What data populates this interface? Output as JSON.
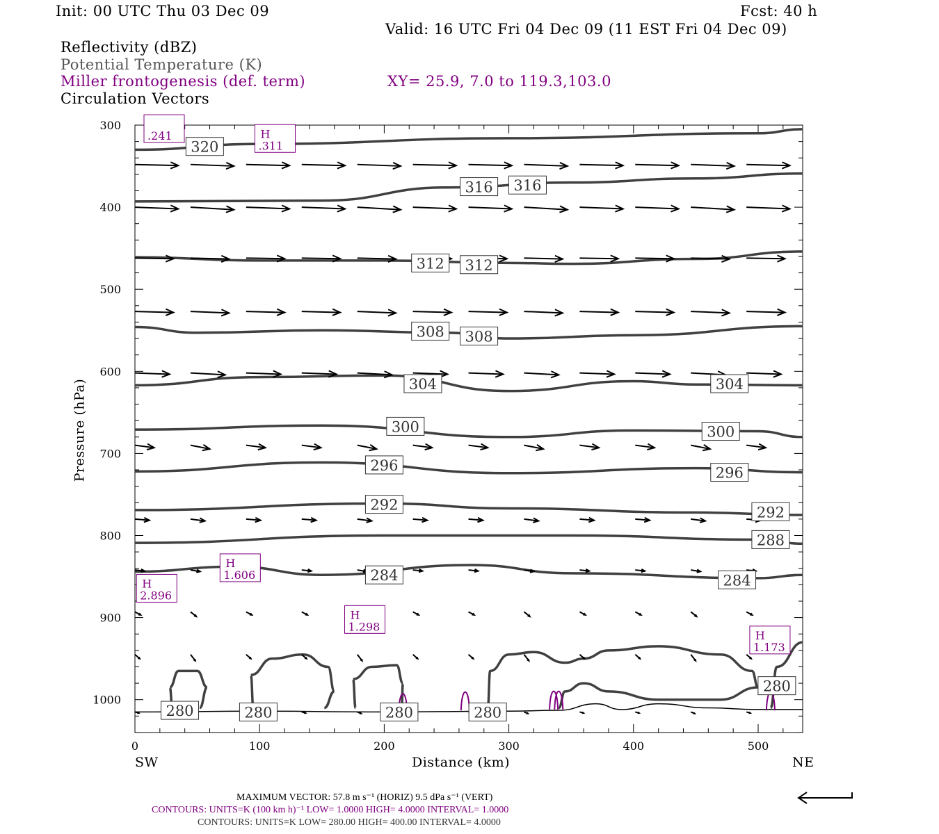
{
  "header": {
    "init": "Init: 00 UTC Thu 03 Dec 09",
    "fcst": "Fcst:   40 h",
    "valid": "Valid: 16 UTC Fri 04 Dec 09 (11 EST Fri 04 Dec 09)"
  },
  "legend": {
    "field1": "Reflectivity (dBZ)",
    "field2": "Potential Temperature (K)",
    "field3": "Miller frontogenesis (def. term)",
    "xy": "XY=  25.9,  7.0 to 119.3,103.0",
    "field4": "Circulation Vectors"
  },
  "footer": {
    "max_vector": "MAXIMUM VECTOR:  57.8 m s⁻¹ (HORIZ)          9.5 dPa s⁻¹ (VERT)",
    "contours_fg": "CONTOURS:  UNITS=K (100 km h)⁻¹  LOW=  1.0000      HIGH=  4.0000      INTERVAL=   1.0000",
    "contours_theta": "CONTOURS:  UNITS=K  LOW=  280.00      HIGH=  400.00      INTERVAL=   4.0000"
  },
  "colors": {
    "theta": "#404040",
    "frontogenesis": "#800080",
    "vectors": "#000000"
  },
  "chart_data": {
    "type": "line",
    "xlabel": "Distance (km)",
    "ylabel": "Pressure (hPa)",
    "xlim": [
      0,
      536
    ],
    "ylim": [
      1040,
      300
    ],
    "xticks": [
      0,
      100,
      200,
      300,
      400,
      500
    ],
    "yticks": [
      300,
      400,
      500,
      600,
      700,
      800,
      900,
      1000
    ],
    "x_end_labels": {
      "left": "SW",
      "right": "NE"
    },
    "theta_contours": [
      {
        "value": 320,
        "points": [
          [
            0,
            330
          ],
          [
            100,
            323
          ],
          [
            300,
            316
          ],
          [
            500,
            310
          ],
          [
            536,
            305
          ]
        ]
      },
      {
        "value": 316,
        "points": [
          [
            0,
            393
          ],
          [
            150,
            392
          ],
          [
            250,
            376
          ],
          [
            350,
            370
          ],
          [
            450,
            365
          ],
          [
            536,
            359
          ]
        ]
      },
      {
        "value": 312,
        "points": [
          [
            0,
            461
          ],
          [
            100,
            465
          ],
          [
            200,
            465
          ],
          [
            300,
            468
          ],
          [
            350,
            469
          ],
          [
            450,
            463
          ],
          [
            536,
            454
          ]
        ]
      },
      {
        "value": 308,
        "points": [
          [
            0,
            546
          ],
          [
            50,
            553
          ],
          [
            150,
            550
          ],
          [
            250,
            553
          ],
          [
            300,
            560
          ],
          [
            400,
            556
          ],
          [
            536,
            545
          ]
        ]
      },
      {
        "value": 304,
        "points": [
          [
            0,
            617
          ],
          [
            100,
            607
          ],
          [
            200,
            605
          ],
          [
            300,
            624
          ],
          [
            400,
            612
          ],
          [
            450,
            616
          ],
          [
            536,
            617
          ]
        ]
      },
      {
        "value": 300,
        "points": [
          [
            0,
            671
          ],
          [
            150,
            666
          ],
          [
            300,
            680
          ],
          [
            400,
            672
          ],
          [
            500,
            673
          ],
          [
            536,
            680
          ]
        ]
      },
      {
        "value": 296,
        "points": [
          [
            0,
            722
          ],
          [
            150,
            711
          ],
          [
            300,
            724
          ],
          [
            450,
            718
          ],
          [
            536,
            723
          ]
        ]
      },
      {
        "value": 292,
        "points": [
          [
            0,
            769
          ],
          [
            200,
            761
          ],
          [
            300,
            767
          ],
          [
            450,
            772
          ],
          [
            536,
            775
          ]
        ]
      },
      {
        "value": 288,
        "points": [
          [
            0,
            809
          ],
          [
            200,
            800
          ],
          [
            350,
            800
          ],
          [
            500,
            805
          ],
          [
            536,
            810
          ]
        ]
      },
      {
        "value": 284,
        "points": [
          [
            0,
            844
          ],
          [
            80,
            838
          ],
          [
            150,
            848
          ],
          [
            270,
            836
          ],
          [
            350,
            846
          ],
          [
            500,
            852
          ],
          [
            536,
            848
          ]
        ]
      },
      {
        "value": 280,
        "points": [
          [
            30,
            1010
          ],
          [
            28,
            985
          ],
          [
            35,
            965
          ],
          [
            50,
            965
          ],
          [
            58,
            985
          ],
          [
            52,
            1010
          ]
        ]
      },
      {
        "value": 280,
        "points": [
          [
            95,
            1010
          ],
          [
            93,
            970
          ],
          [
            110,
            950
          ],
          [
            135,
            945
          ],
          [
            155,
            960
          ],
          [
            160,
            990
          ],
          [
            152,
            1010
          ]
        ]
      },
      {
        "value": 280,
        "points": [
          [
            177,
            1010
          ],
          [
            175,
            975
          ],
          [
            190,
            960
          ],
          [
            210,
            958
          ],
          [
            215,
            980
          ],
          [
            214,
            1010
          ]
        ]
      },
      {
        "value": 280,
        "points": [
          [
            283,
            1012
          ],
          [
            285,
            965
          ],
          [
            300,
            945
          ],
          [
            320,
            942
          ],
          [
            345,
            955
          ],
          [
            360,
            950
          ],
          [
            380,
            940
          ],
          [
            420,
            935
          ],
          [
            470,
            945
          ],
          [
            495,
            965
          ],
          [
            500,
            985
          ],
          [
            470,
            1000
          ],
          [
            420,
            1000
          ],
          [
            380,
            990
          ],
          [
            360,
            980
          ],
          [
            345,
            990
          ],
          [
            340,
            1010
          ]
        ]
      },
      {
        "value": 280,
        "points": [
          [
            510,
            1010
          ],
          [
            515,
            960
          ],
          [
            536,
            930
          ]
        ]
      }
    ],
    "theta_labels": [
      {
        "text": "320",
        "x": 56,
        "p": 326
      },
      {
        "text": "316",
        "x": 276,
        "p": 375
      },
      {
        "text": "316",
        "x": 315,
        "p": 373
      },
      {
        "text": "312",
        "x": 237,
        "p": 468
      },
      {
        "text": "312",
        "x": 276,
        "p": 470
      },
      {
        "text": "308",
        "x": 237,
        "p": 551
      },
      {
        "text": "308",
        "x": 276,
        "p": 557
      },
      {
        "text": "304",
        "x": 231,
        "p": 615
      },
      {
        "text": "304",
        "x": 477,
        "p": 615
      },
      {
        "text": "300",
        "x": 217,
        "p": 667
      },
      {
        "text": "300",
        "x": 470,
        "p": 673
      },
      {
        "text": "296",
        "x": 200,
        "p": 714
      },
      {
        "text": "296",
        "x": 477,
        "p": 723
      },
      {
        "text": "292",
        "x": 200,
        "p": 762
      },
      {
        "text": "292",
        "x": 510,
        "p": 771
      },
      {
        "text": "288",
        "x": 510,
        "p": 805
      },
      {
        "text": "284",
        "x": 200,
        "p": 848
      },
      {
        "text": "284",
        "x": 483,
        "p": 854
      },
      {
        "text": "280",
        "x": 515,
        "p": 983
      },
      {
        "text": "280",
        "x": 36,
        "p": 1013
      },
      {
        "text": "280",
        "x": 99,
        "p": 1015
      },
      {
        "text": "280",
        "x": 212,
        "p": 1015
      },
      {
        "text": "280",
        "x": 283,
        "p": 1015
      }
    ],
    "frontogenesis_maxima": [
      {
        "label": "H",
        "value": ".241",
        "x": 24,
        "p": 306,
        "nolabel": true
      },
      {
        "label": "H",
        "value": ".311",
        "x": 113,
        "p": 318
      },
      {
        "label": "H",
        "value": "1.606",
        "x": 85,
        "p": 841
      },
      {
        "label": "H",
        "value": "2.896",
        "x": 18,
        "p": 866
      },
      {
        "label": "H",
        "value": "1.298",
        "x": 185,
        "p": 904
      },
      {
        "label": "H",
        "value": "1.173",
        "x": 510,
        "p": 929
      }
    ],
    "frontogenesis_contours": [
      [
        215,
        1015
      ],
      [
        265,
        1013
      ],
      [
        336,
        1012
      ],
      [
        340,
        1012
      ],
      [
        510,
        1013
      ]
    ],
    "vector_rows": [
      {
        "p": 348,
        "u": 45,
        "w": 0.5
      },
      {
        "p": 400,
        "u": 45,
        "w": 0.8
      },
      {
        "p": 462,
        "u": 40,
        "w": 0.3
      },
      {
        "p": 527,
        "u": 40,
        "w": 0.5
      },
      {
        "p": 602,
        "u": 36,
        "w": 0.6
      },
      {
        "p": 690,
        "u": 20,
        "w": 1.2
      },
      {
        "p": 780,
        "u": 15,
        "w": 0.6
      },
      {
        "p": 842,
        "u": 10,
        "w": 0.5
      },
      {
        "p": 893,
        "u": 6,
        "w": 1.5
      },
      {
        "p": 945,
        "u": 5,
        "w": 2
      },
      {
        "p": 1015,
        "u": 4,
        "w": 0.5
      }
    ],
    "terrain": [
      [
        0,
        1015
      ],
      [
        100,
        1014
      ],
      [
        200,
        1015
      ],
      [
        300,
        1014
      ],
      [
        340,
        1013
      ],
      [
        370,
        1005
      ],
      [
        390,
        1012
      ],
      [
        420,
        1005
      ],
      [
        460,
        1010
      ],
      [
        500,
        1012
      ],
      [
        536,
        1012
      ]
    ]
  }
}
